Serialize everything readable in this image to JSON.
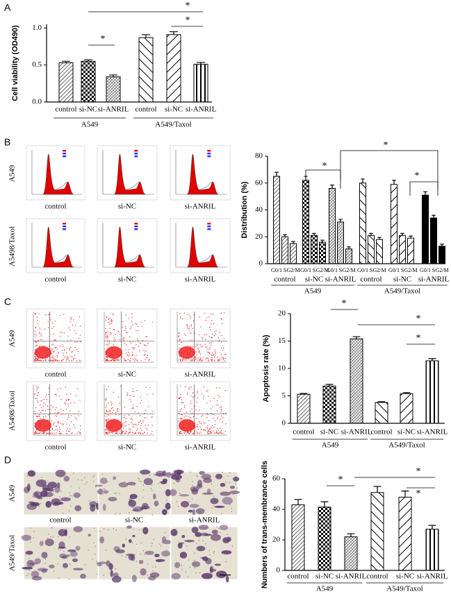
{
  "panel_labels": [
    "A",
    "B",
    "C",
    "D"
  ],
  "cell_cycle_images": {
    "rows": [
      "A549",
      "A5498/Taxol"
    ],
    "columns": [
      "control",
      "si-NC",
      "si-ANRIL"
    ]
  },
  "apoptosis_images": {
    "rows": [
      "A549",
      "A5498/Taxol"
    ],
    "columns": [
      "control",
      "si-NC",
      "si-ANRIL"
    ]
  },
  "transwell_images": {
    "rows": [
      "A549",
      "A549/Taxol"
    ],
    "columns": [
      "control",
      "si-NC",
      "si-ANRIL"
    ]
  },
  "chart_data": [
    {
      "type": "bar",
      "ylabel": "Cell viability (OD490)",
      "categories": [
        "control",
        "si-NC",
        "si-ANRIL",
        "control",
        "si-NC",
        "si-ANRIL"
      ],
      "groups": [
        "A549",
        "A549/Taxol"
      ],
      "values": [
        0.53,
        0.55,
        0.34,
        0.87,
        0.91,
        0.51
      ],
      "errors": [
        0.02,
        0.02,
        0.025,
        0.04,
        0.04,
        0.025
      ],
      "ylim": [
        0,
        1.05
      ],
      "yticks": [
        {
          "value": 0,
          "label": "0.0"
        },
        {
          "value": 0.5,
          "label": "0.5"
        },
        {
          "value": 1,
          "label": "1.0"
        }
      ],
      "annotations": [
        "*",
        "*",
        "*"
      ]
    },
    {
      "type": "grouped-bar",
      "ylabel": "Distribution (%)",
      "categories": [
        "control",
        "si-NC",
        "si-ANRIL",
        "control",
        "si-NC",
        "si-ANRIL"
      ],
      "groups": [
        "A549",
        "A549/Taxol"
      ],
      "series": [
        {
          "name": "G0/1",
          "values": [
            65,
            62,
            56,
            60,
            59,
            51
          ],
          "errors": [
            3,
            3,
            2.5,
            3,
            3,
            2.5
          ]
        },
        {
          "name": "S",
          "values": [
            20,
            21,
            31,
            21,
            21,
            34
          ],
          "errors": [
            1.5,
            1.5,
            2,
            1.5,
            1.5,
            2
          ]
        },
        {
          "name": "G2/M",
          "values": [
            15,
            16,
            11,
            18,
            19,
            13
          ],
          "errors": [
            1.5,
            1.5,
            1.5,
            1.5,
            1.5,
            1.5
          ]
        }
      ],
      "ylim": [
        0,
        80
      ],
      "yticks": [
        0,
        20,
        40,
        60,
        80
      ],
      "annotations": [
        "*",
        "*",
        "*"
      ]
    },
    {
      "type": "bar",
      "ylabel": "Apoptosis rate (%)",
      "categories": [
        "control",
        "si-NC",
        "si-ANRIL",
        "control",
        "si-NC",
        "si-ANRIL"
      ],
      "groups": [
        "A549",
        "A549/Taxol"
      ],
      "values": [
        5.3,
        6.8,
        15.4,
        3.8,
        5.4,
        11.4
      ],
      "errors": [
        0.15,
        0.3,
        0.4,
        0.15,
        0.2,
        0.4
      ],
      "ylim": [
        0,
        20
      ],
      "yticks": [
        0,
        5,
        10,
        15,
        20
      ],
      "annotations": [
        "*",
        "*",
        "*"
      ]
    },
    {
      "type": "bar",
      "ylabel": "Numbers of trans-membrance cells",
      "categories": [
        "control",
        "si-NC",
        "si-ANRIL",
        "control",
        "si-NC",
        "si-ANRIL"
      ],
      "groups": [
        "A549",
        "A549/Taxol"
      ],
      "values": [
        43,
        41.5,
        22,
        51,
        48,
        27
      ],
      "errors": [
        3.5,
        3.5,
        2,
        4,
        4,
        2.5
      ],
      "ylim": [
        0,
        60
      ],
      "yticks": [
        0,
        20,
        40,
        60
      ],
      "annotations": [
        "*",
        "*",
        "*"
      ]
    }
  ]
}
